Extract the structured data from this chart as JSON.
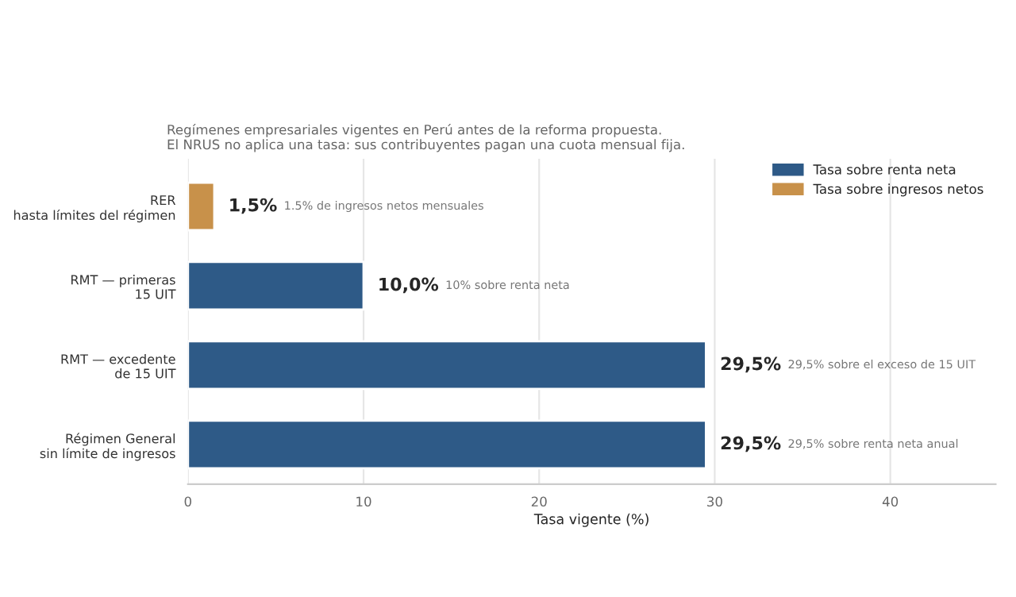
{
  "chart_data": {
    "type": "bar",
    "orientation": "horizontal",
    "subtitle": "Regímenes empresariales vigentes en Perú antes de la reforma propuesta.\nEl NRUS no aplica una tasa: sus contribuyentes pagan una cuota mensual fija.",
    "xlabel": "Tasa vigente (%)",
    "categories": [
      "RER\nhasta límites del régimen",
      "RMT — primeras\n15 UIT",
      "RMT — excedente\nde 15 UIT",
      "Régimen General\nsin límite de ingresos"
    ],
    "series": [
      {
        "name": "Tasa sobre renta neta",
        "color": "#2e5a87",
        "values": [
          null,
          10,
          29.5,
          29.5
        ],
        "value_labels": [
          null,
          "10,0%",
          "29,5%",
          "29,5%"
        ]
      },
      {
        "name": "Tasa sobre ingresos netos",
        "color": "#c8914a",
        "values": [
          1.5,
          null,
          null,
          null
        ],
        "value_labels": [
          "1,5%",
          null,
          null,
          null
        ]
      }
    ],
    "xlim": [
      0,
      46
    ],
    "xticks": [
      0,
      10,
      20,
      30,
      40
    ],
    "grid": "x",
    "legend": "top right",
    "annotations": [
      "1.5% de ingresos netos mensuales",
      "10% sobre renta neta",
      "29,5% sobre el exceso de 15 UIT",
      "29,5% sobre renta neta anual"
    ]
  }
}
